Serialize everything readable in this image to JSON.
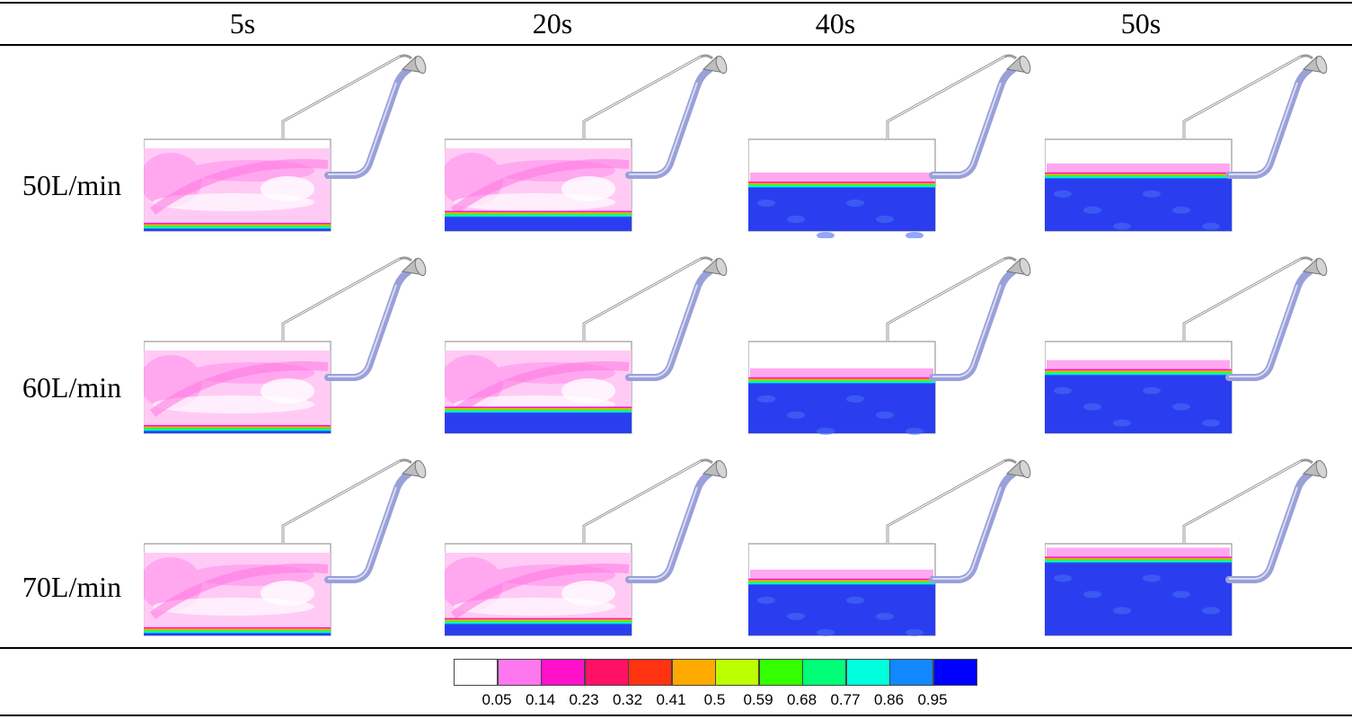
{
  "columns": [
    "5s",
    "20s",
    "40s",
    "50s"
  ],
  "rows": [
    "50L/min",
    "60L/min",
    "70L/min"
  ],
  "legend": {
    "ticks": [
      "0.05",
      "0.14",
      "0.23",
      "0.32",
      "0.41",
      "0.5",
      "0.59",
      "0.68",
      "0.77",
      "0.86",
      "0.95"
    ],
    "colors": [
      "#ffffff",
      "#ff77ee",
      "#ff11cc",
      "#ff1166",
      "#ff3311",
      "#ffaa00",
      "#bbff00",
      "#33ff00",
      "#00ff77",
      "#00ffdd",
      "#1188ff",
      "#0000ff"
    ]
  },
  "fill_levels": [
    [
      0.05,
      0.18,
      0.5,
      0.6
    ],
    [
      0.05,
      0.25,
      0.57,
      0.66
    ],
    [
      0.05,
      0.15,
      0.58,
      0.82
    ]
  ],
  "palette": {
    "liquid": "#2a3ef0",
    "foam": "#ff99ee",
    "foam_light": "#ffc2f4",
    "pipe": "#9aa0d8",
    "frame": "#9a9a9a"
  }
}
